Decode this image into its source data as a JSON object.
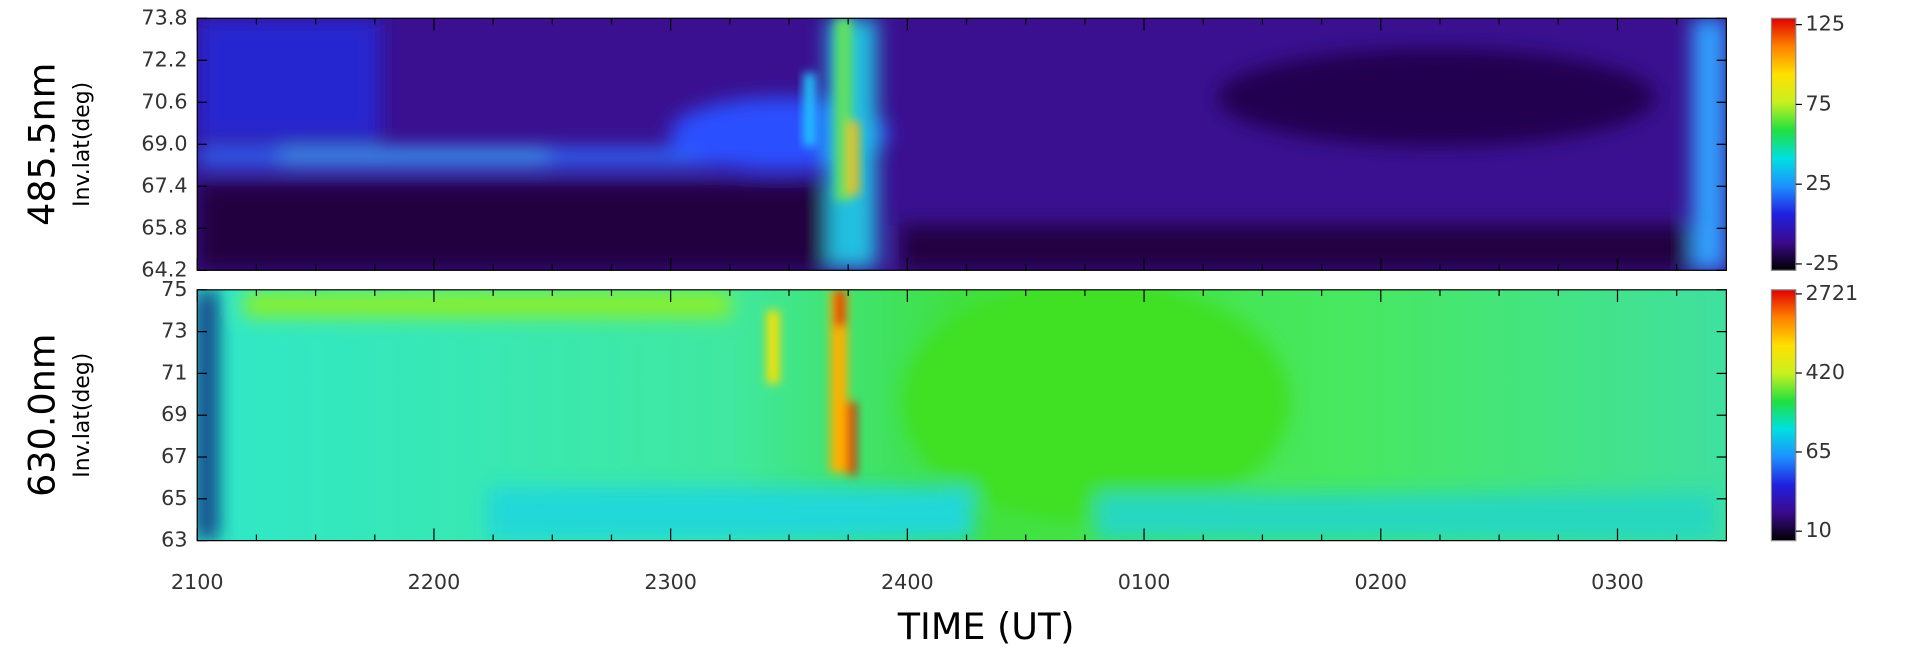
{
  "chart_data": [
    {
      "type": "heatmap",
      "panel_label": "485.5nm",
      "ylabel": "Inv.lat(deg)",
      "ylim": [
        64.2,
        73.8
      ],
      "yticks": [
        64.2,
        65.8,
        67.4,
        {
          "value": 69,
          "label": "69.0"
        },
        70.6,
        72.2,
        73.8
      ],
      "clim": [
        -29,
        129
      ],
      "cticks": [
        -25,
        25,
        75,
        125
      ],
      "clog": false,
      "colormap": [
        "#000000",
        "#3a0a8c",
        "#2020e0",
        "#1e90ff",
        "#00e0e0",
        "#20e040",
        "#c8f020",
        "#ffe000",
        "#ff8000",
        "#e00000"
      ]
    },
    {
      "type": "heatmap",
      "panel_label": "630.0nm",
      "ylabel": "Inv.lat(deg)",
      "ylim": [
        63,
        75
      ],
      "yticks": [
        63,
        65,
        67,
        69,
        71,
        73,
        75
      ],
      "clim": [
        8,
        3000
      ],
      "cticks": [
        10,
        65,
        420,
        2721
      ],
      "clog": true,
      "colormap": [
        "#000000",
        "#3a0a8c",
        "#2020e0",
        "#1e90ff",
        "#00e0e0",
        "#20e040",
        "#c8f020",
        "#ffe000",
        "#ff8000",
        "#e00000"
      ],
      "xlabel": "TIME (UT)",
      "xlim": [
        21,
        27.46
      ],
      "xticks": [
        {
          "value": 21,
          "label": "2100"
        },
        {
          "value": 22,
          "label": "2200"
        },
        {
          "value": 23,
          "label": "2300"
        },
        {
          "value": 24,
          "label": "2400"
        },
        {
          "value": 25,
          "label": "0100"
        },
        {
          "value": 26,
          "label": "0200"
        },
        {
          "value": 27,
          "label": "0300"
        }
      ]
    }
  ]
}
